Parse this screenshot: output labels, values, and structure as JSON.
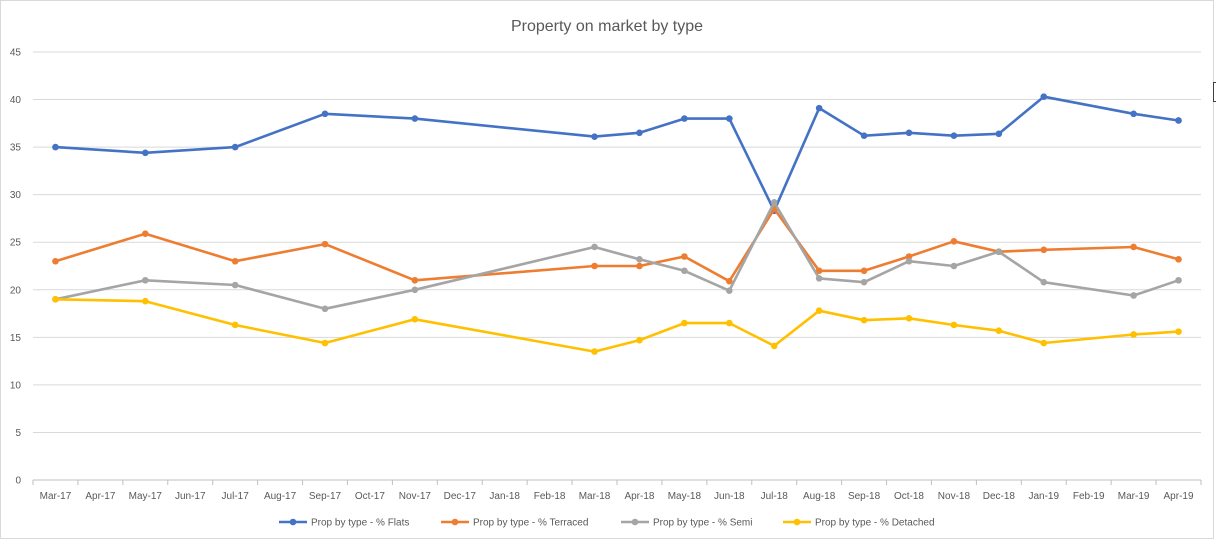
{
  "chart_data": {
    "type": "line",
    "title": "Property on market by type",
    "xlabel": "",
    "ylabel": "",
    "ylim": [
      0,
      45
    ],
    "yticks": [
      0,
      5,
      10,
      15,
      20,
      25,
      30,
      35,
      40,
      45
    ],
    "grid": true,
    "legend_position": "bottom",
    "categories": [
      "Mar-17",
      "Apr-17",
      "May-17",
      "Jun-17",
      "Jul-17",
      "Aug-17",
      "Sep-17",
      "Oct-17",
      "Nov-17",
      "Dec-17",
      "Jan-18",
      "Feb-18",
      "Mar-18",
      "Apr-18",
      "May-18",
      "Jun-18",
      "Jul-18",
      "Aug-18",
      "Sep-18",
      "Oct-18",
      "Nov-18",
      "Dec-18",
      "Jan-19",
      "Feb-19",
      "Mar-19",
      "Apr-19"
    ],
    "series": [
      {
        "name": "Prop by type - % Flats",
        "color": "#4472C4",
        "values": [
          35.0,
          null,
          34.4,
          null,
          35.0,
          null,
          38.5,
          null,
          38.0,
          null,
          null,
          null,
          36.1,
          36.5,
          38.0,
          38.0,
          28.3,
          39.1,
          36.2,
          36.5,
          36.2,
          36.4,
          40.3,
          null,
          38.5,
          37.8
        ]
      },
      {
        "name": "Prop by type - % Terraced",
        "color": "#ED7D31",
        "values": [
          23.0,
          null,
          25.9,
          null,
          23.0,
          null,
          24.8,
          null,
          21.0,
          null,
          null,
          null,
          22.5,
          22.5,
          23.5,
          20.9,
          28.5,
          22.0,
          22.0,
          23.5,
          25.1,
          24.0,
          24.2,
          null,
          24.5,
          23.2
        ]
      },
      {
        "name": "Prop by type - % Semi",
        "color": "#A5A5A5",
        "values": [
          19.0,
          null,
          21.0,
          null,
          20.5,
          null,
          18.0,
          null,
          20.0,
          null,
          null,
          null,
          24.5,
          23.2,
          22.0,
          19.9,
          29.2,
          21.2,
          20.8,
          23.0,
          22.5,
          24.0,
          20.8,
          null,
          19.4,
          21.0
        ]
      },
      {
        "name": "Prop by type - % Detached",
        "color": "#FFC000",
        "values": [
          19.0,
          null,
          18.8,
          null,
          16.3,
          null,
          14.4,
          null,
          16.9,
          null,
          null,
          null,
          13.5,
          14.7,
          16.5,
          16.5,
          14.1,
          17.8,
          16.8,
          17.0,
          16.3,
          15.7,
          14.4,
          null,
          15.3,
          15.6
        ]
      }
    ]
  }
}
